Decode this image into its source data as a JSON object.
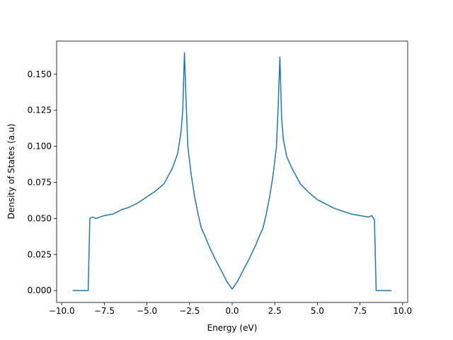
{
  "chart_data": {
    "type": "line",
    "xlabel": "Energy (eV)",
    "ylabel": "Density of States (a.u)",
    "x": [
      -9.36,
      -8.45,
      -8.35,
      -8.2,
      -8.0,
      -7.5,
      -7.0,
      -6.5,
      -6.0,
      -5.5,
      -5.0,
      -4.5,
      -4.0,
      -3.5,
      -3.2,
      -3.0,
      -2.9,
      -2.8,
      -2.7,
      -2.6,
      -2.4,
      -2.2,
      -2.0,
      -1.8,
      -1.6,
      -1.4,
      -1.0,
      -0.6,
      -0.3,
      0,
      0.3,
      0.6,
      1.0,
      1.4,
      1.6,
      1.8,
      2.0,
      2.2,
      2.4,
      2.6,
      2.7,
      2.8,
      2.9,
      3.0,
      3.2,
      3.5,
      4.0,
      4.5,
      5.0,
      5.5,
      6.0,
      6.5,
      7.0,
      7.5,
      8.0,
      8.2,
      8.35,
      8.45,
      9.36
    ],
    "series": [
      {
        "color": "#1f77b4",
        "values": [
          0,
          0,
          0.05,
          0.051,
          0.05,
          0.052,
          0.053,
          0.056,
          0.058,
          0.061,
          0.065,
          0.069,
          0.074,
          0.085,
          0.095,
          0.11,
          0.125,
          0.165,
          0.13,
          0.1,
          0.08,
          0.065,
          0.053,
          0.043,
          0.038,
          0.032,
          0.022,
          0.013,
          0.006,
          0.001,
          0.006,
          0.013,
          0.022,
          0.032,
          0.038,
          0.043,
          0.053,
          0.065,
          0.08,
          0.1,
          0.128,
          0.162,
          0.12,
          0.105,
          0.093,
          0.085,
          0.074,
          0.068,
          0.063,
          0.06,
          0.057,
          0.055,
          0.053,
          0.052,
          0.051,
          0.052,
          0.049,
          0,
          0
        ]
      }
    ],
    "xlim": [
      -10.3,
      10.3
    ],
    "xticks": [
      {
        "value": -10,
        "label": "−10.0"
      },
      {
        "value": -7.5,
        "label": "−7.5"
      },
      {
        "value": -5,
        "label": "−5.0"
      },
      {
        "value": -2.5,
        "label": "−2.5"
      },
      {
        "value": 0,
        "label": "0.0"
      },
      {
        "value": 2.5,
        "label": "2.5"
      },
      {
        "value": 5,
        "label": "5.0"
      },
      {
        "value": 7.5,
        "label": "7.5"
      },
      {
        "value": 10,
        "label": "10.0"
      }
    ],
    "ylim": [
      -0.00825,
      0.173
    ],
    "yticks": [
      {
        "value": 0,
        "label": "0.000"
      },
      {
        "value": 0.025,
        "label": "0.025"
      },
      {
        "value": 0.05,
        "label": "0.050"
      },
      {
        "value": 0.075,
        "label": "0.075"
      },
      {
        "value": 0.1,
        "label": "0.100"
      },
      {
        "value": 0.125,
        "label": "0.125"
      },
      {
        "value": 0.15,
        "label": "0.150"
      }
    ]
  }
}
